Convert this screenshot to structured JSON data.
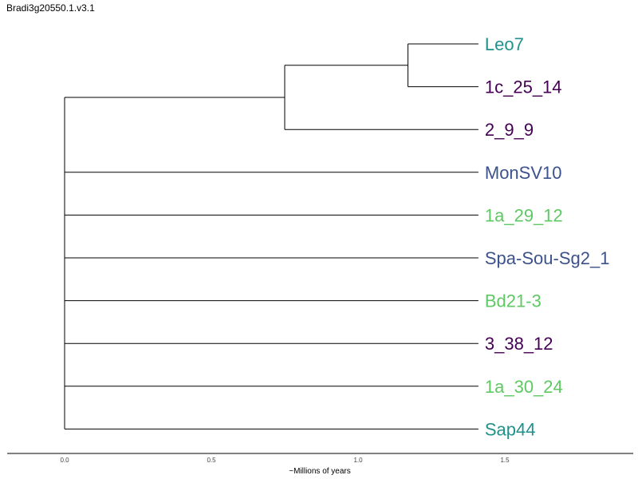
{
  "chart_data": {
    "type": "tree",
    "title": "Bradi3g20550.1.v3.1",
    "xlabel": "~Millions of years",
    "xlim": [
      0.0,
      1.5
    ],
    "xticks": [
      0.0,
      0.5,
      1.0,
      1.5
    ],
    "xtick_labels": [
      "0.0",
      "0.5",
      "1.0",
      "1.5"
    ],
    "grid": false,
    "colors": {
      "teal": "#21918c",
      "purple": "#440154",
      "blue": "#3b528b",
      "green": "#5ec962"
    },
    "tips": [
      {
        "label": "Leo7",
        "color": "#21918c"
      },
      {
        "label": "1c_25_14",
        "color": "#440154"
      },
      {
        "label": "2_9_9",
        "color": "#440154"
      },
      {
        "label": "MonSV10",
        "color": "#3b528b"
      },
      {
        "label": "1a_29_12",
        "color": "#5ec962"
      },
      {
        "label": "Spa-Sou-Sg2_1",
        "color": "#3b528b"
      },
      {
        "label": "Bd21-3",
        "color": "#5ec962"
      },
      {
        "label": "3_38_12",
        "color": "#440154"
      },
      {
        "label": "1a_30_24",
        "color": "#5ec962"
      },
      {
        "label": "Sap44",
        "color": "#21918c"
      }
    ],
    "nodes": [
      {
        "id": "n_leo_1c",
        "age": 1.17,
        "children": [
          0,
          1
        ]
      },
      {
        "id": "n_clade",
        "age": 0.75,
        "children": [
          "n_leo_1c",
          2
        ]
      },
      {
        "id": "root",
        "age": 0.0,
        "children": [
          "n_clade",
          3,
          4,
          5,
          6,
          7,
          8,
          9
        ]
      }
    ],
    "tip_age": 1.41
  }
}
